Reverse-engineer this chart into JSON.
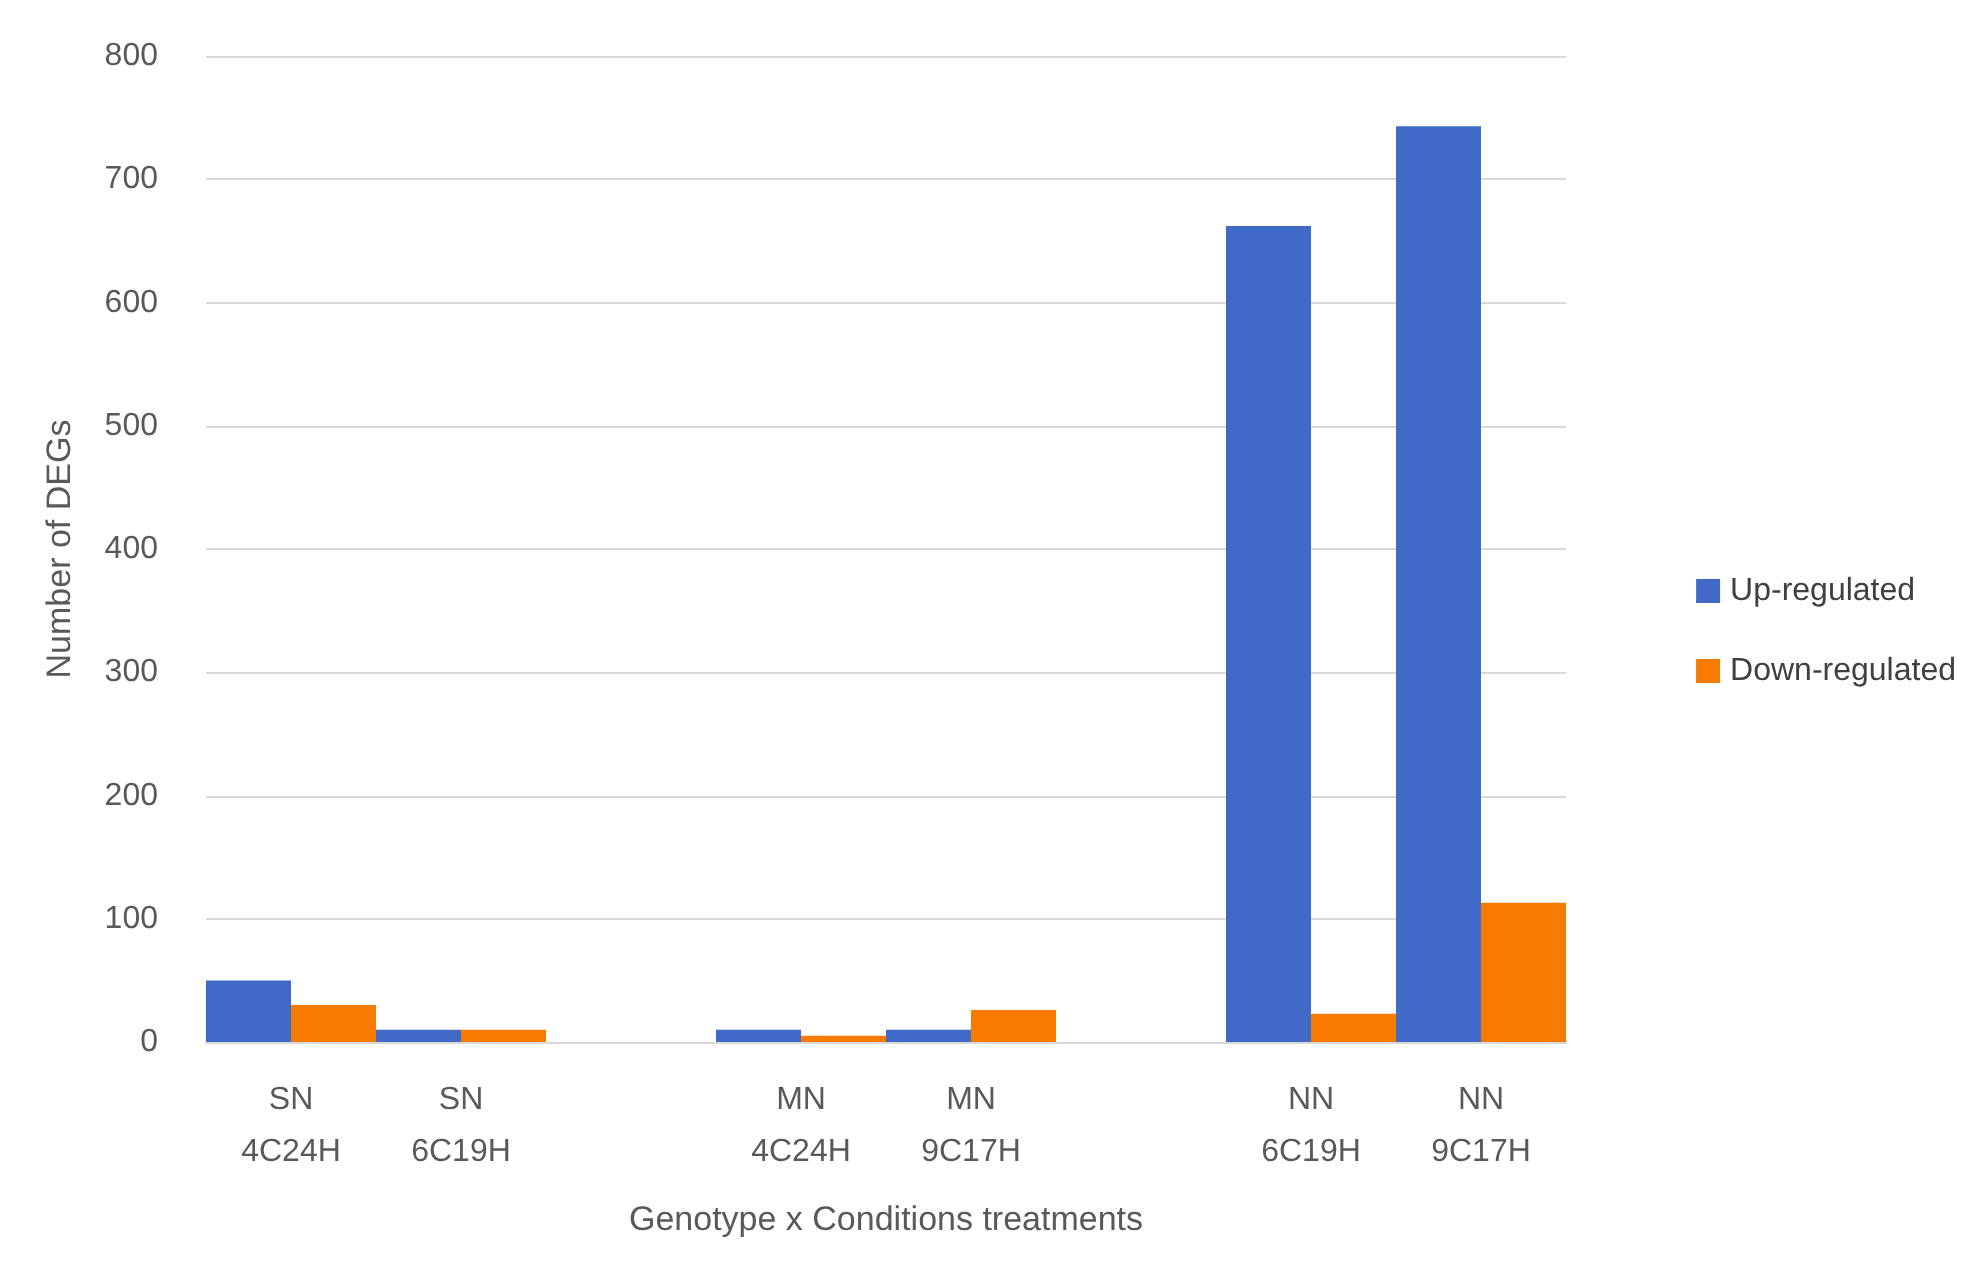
{
  "chart_data": {
    "type": "bar",
    "xlabel": "Genotype x Conditions treatments",
    "ylabel": "Number of DEGs",
    "categories": [
      "SN\n4C24H",
      "SN\n6C19H",
      null,
      "MN\n4C24H",
      "MN\n9C17H",
      null,
      "NN\n6C19H",
      "NN\n9C17H"
    ],
    "series": [
      {
        "name": "Up-regulated",
        "color": "#4169c8",
        "values": [
          50,
          10,
          null,
          10,
          10,
          null,
          662,
          743
        ]
      },
      {
        "name": "Down-regulated",
        "color": "#f77b00",
        "values": [
          30,
          10,
          null,
          5,
          26,
          null,
          23,
          113
        ]
      }
    ],
    "ylim": [
      0,
      800
    ],
    "yticks": [
      0,
      100,
      200,
      300,
      400,
      500,
      600,
      700,
      800
    ],
    "grid": "y",
    "legend": "right"
  }
}
